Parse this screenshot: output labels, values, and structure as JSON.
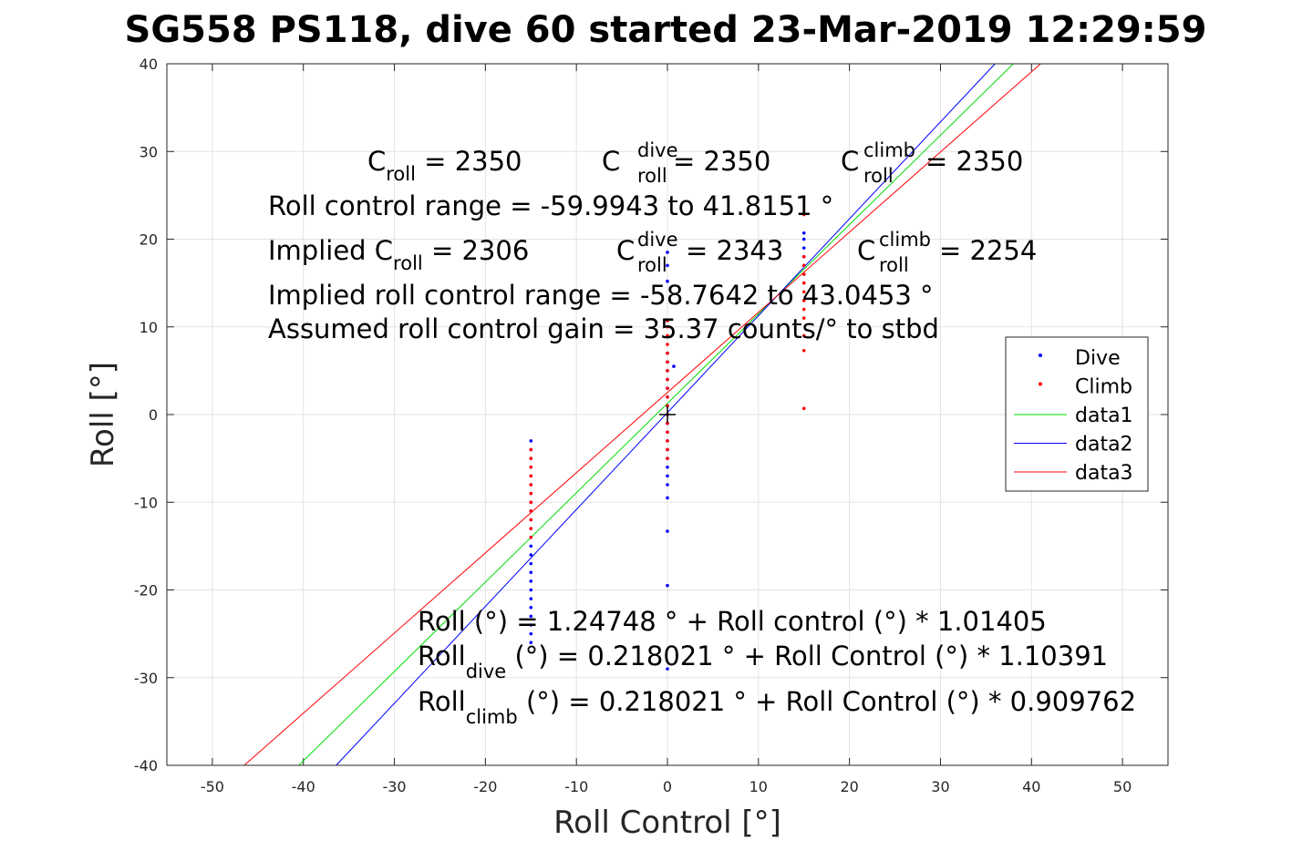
{
  "chart_data": {
    "type": "scatter",
    "title": "SG558 PS118, dive 60 started 23-Mar-2019 12:29:59",
    "xlabel": "Roll Control [°]",
    "ylabel": "Roll [°]",
    "xlim": [
      -55,
      55
    ],
    "ylim": [
      -40,
      40
    ],
    "xticks": [
      -50,
      -40,
      -30,
      -20,
      -10,
      0,
      10,
      20,
      30,
      40,
      50
    ],
    "yticks": [
      -40,
      -30,
      -20,
      -10,
      0,
      10,
      20,
      30,
      40
    ],
    "grid": true,
    "legend_placement": "right",
    "legend": [
      "Dive",
      "Climb",
      "data1",
      "data2",
      "data3"
    ],
    "series": [
      {
        "name": "Dive",
        "kind": "points",
        "color": "#0000ff",
        "points": [
          [
            -15,
            -3
          ],
          [
            -15,
            -4
          ],
          [
            -15,
            -5
          ],
          [
            -15,
            -6
          ],
          [
            -15,
            -7
          ],
          [
            -15,
            -8
          ],
          [
            -15,
            -9
          ],
          [
            -15,
            -10
          ],
          [
            -15,
            -11
          ],
          [
            -15,
            -12
          ],
          [
            -15,
            -13
          ],
          [
            -15,
            -14
          ],
          [
            -15,
            -15
          ],
          [
            -15,
            -16
          ],
          [
            -15,
            -17
          ],
          [
            -15,
            -18
          ],
          [
            -15,
            -19
          ],
          [
            -15,
            -20
          ],
          [
            -15,
            -21
          ],
          [
            -15,
            -22
          ],
          [
            -15,
            -23
          ],
          [
            -15,
            -24
          ],
          [
            -15,
            -25
          ],
          [
            -15,
            -26
          ],
          [
            0,
            -29
          ],
          [
            0,
            -19.5
          ],
          [
            0,
            -13.3
          ],
          [
            0,
            -9.5
          ],
          [
            0,
            -8
          ],
          [
            0,
            -7
          ],
          [
            0,
            -6
          ],
          [
            0,
            -5
          ],
          [
            0,
            -4
          ],
          [
            0,
            -3
          ],
          [
            0,
            -2
          ],
          [
            0,
            -1
          ],
          [
            0,
            0
          ],
          [
            0,
            1
          ],
          [
            0,
            2
          ],
          [
            0,
            3
          ],
          [
            0,
            4
          ],
          [
            0,
            5
          ],
          [
            0,
            6
          ],
          [
            0,
            7
          ],
          [
            0,
            15.2
          ],
          [
            0,
            17
          ],
          [
            0,
            18.5
          ],
          [
            0.7,
            5.5
          ],
          [
            15,
            15
          ],
          [
            15,
            16
          ],
          [
            15,
            17
          ],
          [
            15,
            18
          ],
          [
            15,
            19
          ],
          [
            15,
            20
          ],
          [
            15,
            20.7
          ]
        ]
      },
      {
        "name": "Climb",
        "kind": "points",
        "color": "#ff0000",
        "points": [
          [
            -15,
            -4
          ],
          [
            -15,
            -5
          ],
          [
            -15,
            -6
          ],
          [
            -15,
            -7
          ],
          [
            -15,
            -8
          ],
          [
            -15,
            -9
          ],
          [
            -15,
            -10
          ],
          [
            -15,
            -11
          ],
          [
            -15,
            -12
          ],
          [
            -15,
            -13
          ],
          [
            -15,
            -14
          ],
          [
            0,
            -5
          ],
          [
            0,
            -4
          ],
          [
            0,
            -3
          ],
          [
            0,
            -2
          ],
          [
            0,
            -1
          ],
          [
            0,
            0
          ],
          [
            0,
            1
          ],
          [
            0,
            2
          ],
          [
            0,
            3
          ],
          [
            0,
            4
          ],
          [
            0,
            5
          ],
          [
            0,
            6
          ],
          [
            0,
            7
          ],
          [
            0,
            8
          ],
          [
            0,
            9
          ],
          [
            0,
            10
          ],
          [
            0,
            10.7
          ],
          [
            15,
            0.7
          ],
          [
            15,
            7.3
          ],
          [
            15,
            9
          ],
          [
            15,
            11
          ],
          [
            15,
            12
          ],
          [
            15,
            13
          ],
          [
            15,
            14
          ],
          [
            15,
            15
          ],
          [
            15,
            16
          ],
          [
            15,
            17
          ],
          [
            15,
            18
          ],
          [
            15,
            22.8
          ]
        ]
      },
      {
        "name": "data1",
        "kind": "line",
        "color": "#00dd00",
        "x": [
          -40.5,
          38
        ],
        "y": [
          -40,
          40
        ]
      },
      {
        "name": "data2",
        "kind": "line",
        "color": "#0000ff",
        "x": [
          -36.4,
          36
        ],
        "y": [
          -40,
          40
        ]
      },
      {
        "name": "data3",
        "kind": "line",
        "color": "#ff0000",
        "x": [
          -46.5,
          41
        ],
        "y": [
          -40,
          40
        ]
      }
    ],
    "annotations": {
      "croll": {
        "base": "C",
        "sub": "roll",
        "value": " = 2350"
      },
      "croll_dive": {
        "base": "C",
        "sup": "dive",
        "sub": "roll",
        "value": " = 2350"
      },
      "croll_climb": {
        "base": "C",
        "sup": "climb",
        "sub": "roll",
        "value": " = 2350"
      },
      "range_line": "Roll control range = -59.9943 to 41.8151 °",
      "implied_croll": {
        "prefix": "Implied C",
        "sub": "roll",
        "value": " = 2306"
      },
      "implied_dive": {
        "base": "C",
        "sup": "dive",
        "sub": "roll",
        "value": " = 2343"
      },
      "implied_climb": {
        "base": "C",
        "sup": "climb",
        "sub": "roll",
        "value": " = 2254"
      },
      "implied_range_line": "Implied roll control range = -58.7642 to 43.0453 °",
      "gain_line": "Assumed roll control gain = 35.37 counts/° to stbd",
      "fit_line": "Roll (°) = 1.24748 ° + Roll control (°) * 1.01405",
      "fit_dive": {
        "base": "Roll",
        "sub": "dive",
        "rest": " (°) = 0.218021 ° + Roll Control (°) * 1.10391"
      },
      "fit_climb": {
        "base": "Roll",
        "sub": "climb",
        "rest": " (°) = 0.218021 ° + Roll Control (°) * 0.909762"
      }
    }
  }
}
